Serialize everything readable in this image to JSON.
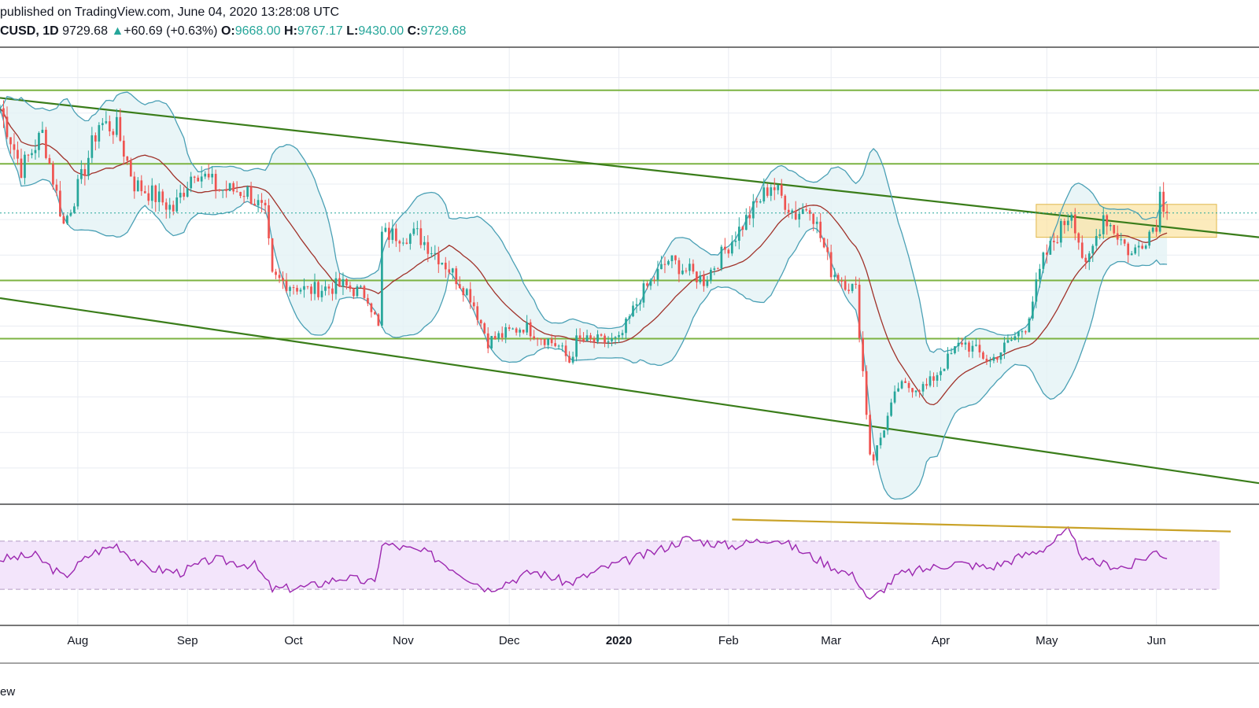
{
  "header": {
    "published": "published on TradingView.com, June 04, 2020 13:28:08 UTC",
    "symbol": "CUSD, 1D",
    "last": "9729.68",
    "up_arrow": "▲",
    "change": "+60.69 (+0.63%)",
    "o_label": "O:",
    "o_value": "9668.00",
    "h_label": "H:",
    "h_value": "9767.17",
    "l_label": "L:",
    "l_value": "9430.00",
    "c_label": "C:",
    "c_value": "9729.68"
  },
  "footer": {
    "brand_fragment": "ew"
  },
  "colors": {
    "up": "#26a69a",
    "down": "#ef5350",
    "grid": "#e9ecf2",
    "trend": "#3a7d1a",
    "level": "#7cb342",
    "bb": "#4aa0b5",
    "bb_fill": "#e3f3f5",
    "ma": "#a0322a",
    "rsi": "#9c27b0",
    "rsi_band": "#f3e5fb",
    "highlight": "#fbe3a0",
    "divergence": "#c9a227"
  },
  "chart_data": [
    {
      "type": "candlestick",
      "x_ticks": [
        {
          "label": "Aug",
          "date": "2019-08-01"
        },
        {
          "label": "Sep",
          "date": "2019-09-01"
        },
        {
          "label": "Oct",
          "date": "2019-10-01"
        },
        {
          "label": "Nov",
          "date": "2019-11-01"
        },
        {
          "label": "Dec",
          "date": "2019-12-01"
        },
        {
          "label": "2020",
          "date": "2020-01-01",
          "bold": true
        },
        {
          "label": "Feb",
          "date": "2020-02-01"
        },
        {
          "label": "Mar",
          "date": "2020-03-01"
        },
        {
          "label": "Apr",
          "date": "2020-04-01"
        },
        {
          "label": "May",
          "date": "2020-05-01"
        },
        {
          "label": "Jun",
          "date": "2020-06-01"
        }
      ],
      "x_range": [
        "2019-07-10",
        "2020-06-30"
      ],
      "y_range": [
        4000,
        13000
      ],
      "indicators": [
        "Bollinger Bands (20, 2)",
        "Moving Average 20"
      ],
      "price_path": [
        [
          "2019-07-10",
          11800
        ],
        [
          "2019-07-16",
          10600
        ],
        [
          "2019-07-22",
          11300
        ],
        [
          "2019-07-28",
          9500
        ],
        [
          "2019-08-02",
          10400
        ],
        [
          "2019-08-07",
          11500
        ],
        [
          "2019-08-12",
          11400
        ],
        [
          "2019-08-17",
          10300
        ],
        [
          "2019-08-22",
          10100
        ],
        [
          "2019-08-28",
          9800
        ],
        [
          "2019-09-03",
          10600
        ],
        [
          "2019-09-10",
          10200
        ],
        [
          "2019-09-18",
          10150
        ],
        [
          "2019-09-23",
          9700
        ],
        [
          "2019-09-25",
          8450
        ],
        [
          "2019-10-05",
          8200
        ],
        [
          "2019-10-15",
          8300
        ],
        [
          "2019-10-22",
          8100
        ],
        [
          "2019-10-25",
          7450
        ],
        [
          "2019-10-26",
          9300
        ],
        [
          "2019-11-05",
          9300
        ],
        [
          "2019-11-12",
          8800
        ],
        [
          "2019-11-20",
          8100
        ],
        [
          "2019-11-25",
          7200
        ],
        [
          "2019-12-05",
          7500
        ],
        [
          "2019-12-15",
          7100
        ],
        [
          "2019-12-18",
          6800
        ],
        [
          "2019-12-20",
          7200
        ],
        [
          "2020-01-01",
          7200
        ],
        [
          "2020-01-07",
          8100
        ],
        [
          "2020-01-15",
          8800
        ],
        [
          "2020-01-25",
          8400
        ],
        [
          "2020-02-05",
          9500
        ],
        [
          "2020-02-13",
          10300
        ],
        [
          "2020-02-20",
          9700
        ],
        [
          "2020-02-24",
          9900
        ],
        [
          "2020-03-01",
          8600
        ],
        [
          "2020-03-08",
          8200
        ],
        [
          "2020-03-12",
          5000
        ],
        [
          "2020-03-13",
          4900
        ],
        [
          "2020-03-20",
          6300
        ],
        [
          "2020-03-28",
          6300
        ],
        [
          "2020-04-07",
          7200
        ],
        [
          "2020-04-15",
          6800
        ],
        [
          "2020-04-25",
          7500
        ],
        [
          "2020-04-30",
          8800
        ],
        [
          "2020-05-08",
          9800
        ],
        [
          "2020-05-12",
          8600
        ],
        [
          "2020-05-17",
          9700
        ],
        [
          "2020-05-25",
          8900
        ],
        [
          "2020-06-01",
          9550
        ],
        [
          "2020-06-02",
          10100
        ],
        [
          "2020-06-04",
          9729.68
        ]
      ],
      "horizontal_levels": [
        12150,
        10700,
        8400,
        7250
      ],
      "channel_upper": [
        [
          "2019-07-10",
          12000
        ],
        [
          "2020-06-30",
          9250
        ]
      ],
      "channel_lower": [
        [
          "2019-07-10",
          8050
        ],
        [
          "2020-06-30",
          4400
        ]
      ],
      "highlight_zone": {
        "from": "2020-04-28",
        "to": "2020-06-18",
        "low": 9250,
        "high": 9900
      },
      "last_price_line": 9729.68
    },
    {
      "type": "line",
      "name_hidden": true,
      "indicator": "RSI",
      "y_range": [
        0,
        100
      ],
      "band": [
        30,
        70
      ],
      "values": [
        [
          "2019-07-10",
          55
        ],
        [
          "2019-07-20",
          58
        ],
        [
          "2019-07-28",
          40
        ],
        [
          "2019-08-05",
          60
        ],
        [
          "2019-08-12",
          67
        ],
        [
          "2019-08-20",
          48
        ],
        [
          "2019-08-30",
          44
        ],
        [
          "2019-09-08",
          55
        ],
        [
          "2019-09-20",
          50
        ],
        [
          "2019-09-25",
          30
        ],
        [
          "2019-10-05",
          32
        ],
        [
          "2019-10-15",
          40
        ],
        [
          "2019-10-24",
          35
        ],
        [
          "2019-10-26",
          68
        ],
        [
          "2019-11-08",
          60
        ],
        [
          "2019-11-22",
          35
        ],
        [
          "2019-11-25",
          30
        ],
        [
          "2019-12-08",
          45
        ],
        [
          "2019-12-18",
          35
        ],
        [
          "2019-12-28",
          48
        ],
        [
          "2020-01-10",
          60
        ],
        [
          "2020-01-20",
          72
        ],
        [
          "2020-02-02",
          66
        ],
        [
          "2020-02-14",
          73
        ],
        [
          "2020-02-26",
          55
        ],
        [
          "2020-03-08",
          40
        ],
        [
          "2020-03-12",
          20
        ],
        [
          "2020-03-20",
          42
        ],
        [
          "2020-04-05",
          52
        ],
        [
          "2020-04-15",
          48
        ],
        [
          "2020-04-30",
          64
        ],
        [
          "2020-05-07",
          78
        ],
        [
          "2020-05-12",
          53
        ],
        [
          "2020-05-24",
          48
        ],
        [
          "2020-06-01",
          62
        ],
        [
          "2020-06-04",
          57
        ]
      ],
      "divergence_line": [
        [
          "2020-02-02",
          88
        ],
        [
          "2020-06-22",
          78
        ]
      ]
    }
  ]
}
